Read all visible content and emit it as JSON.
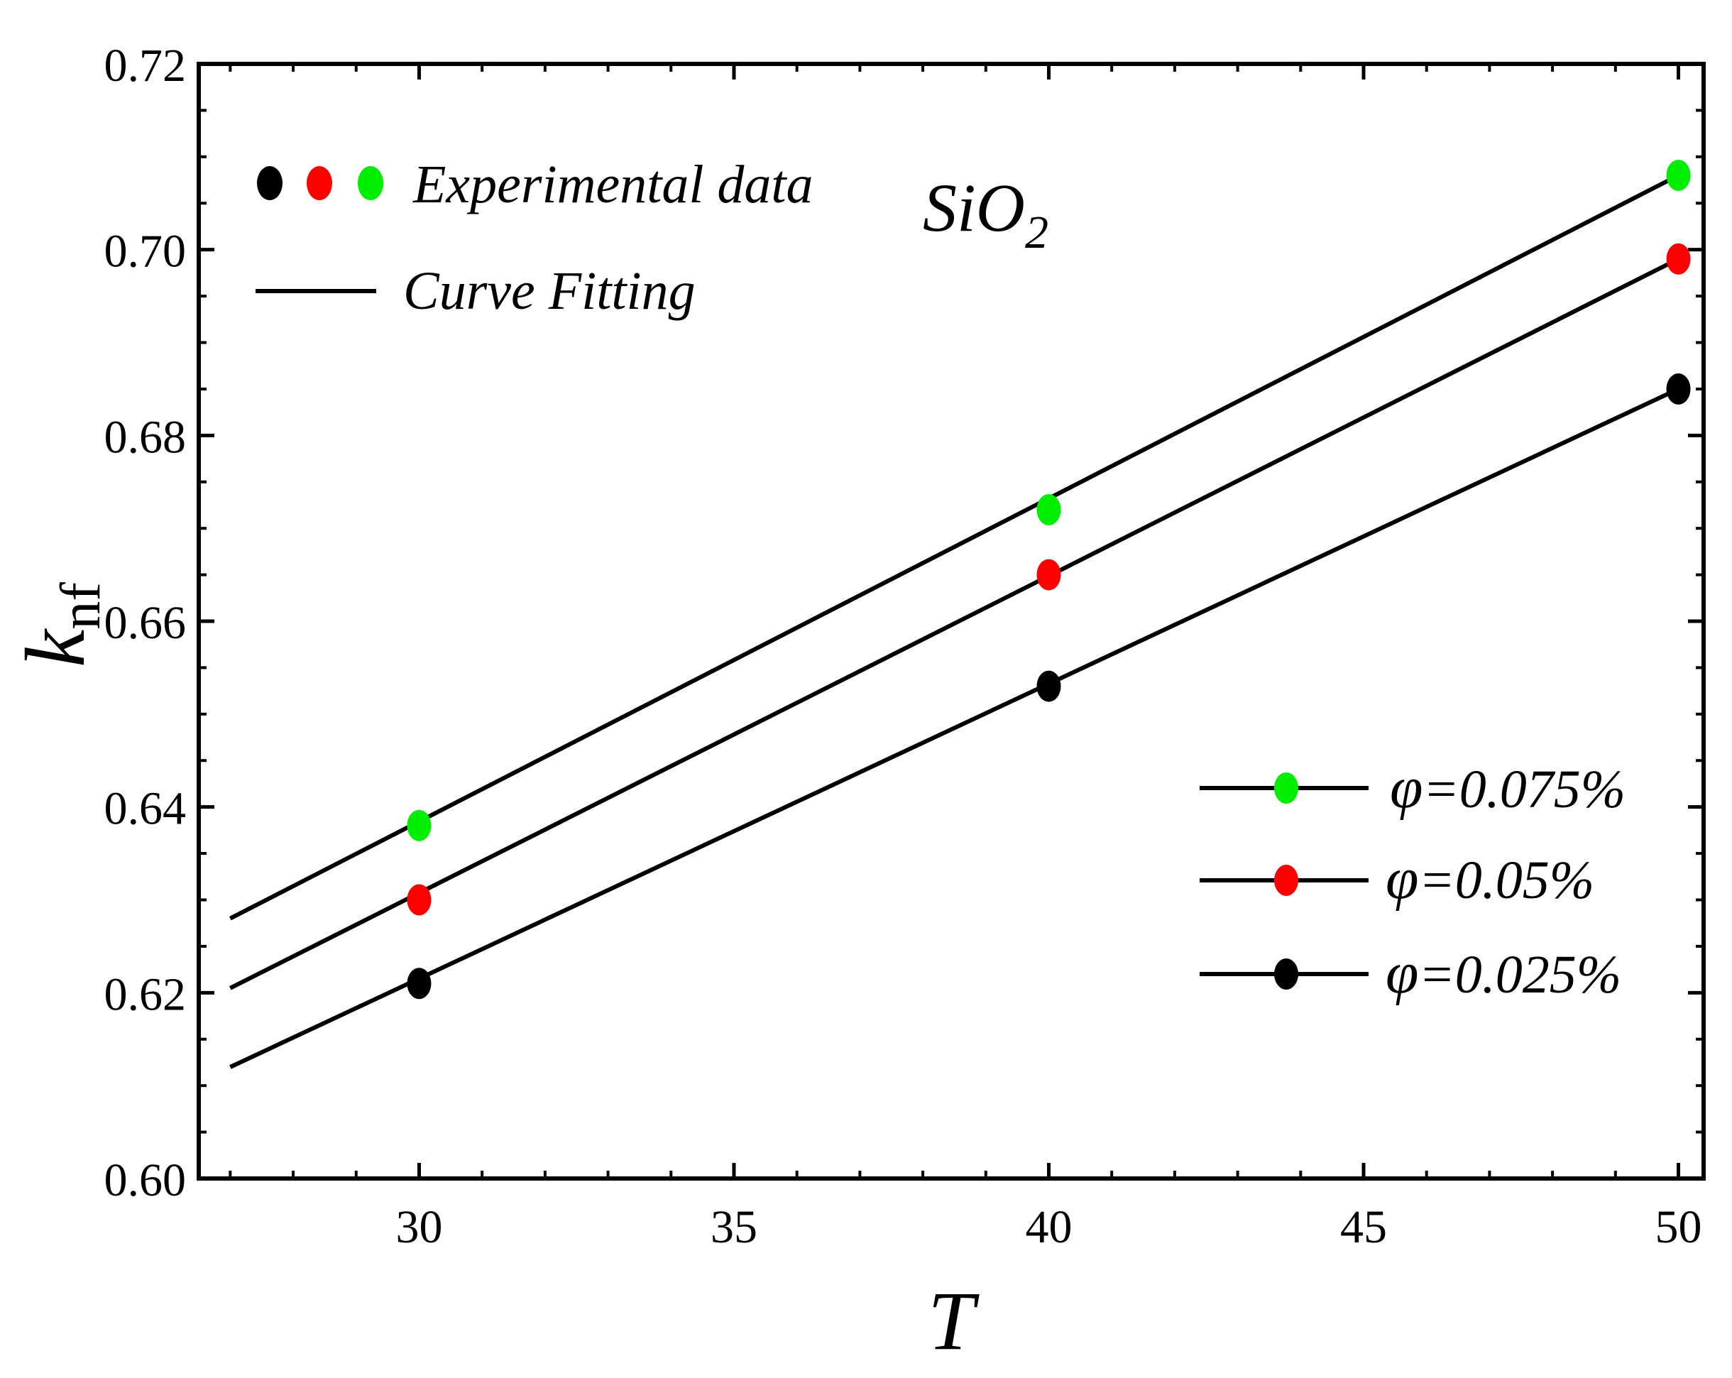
{
  "chart_data": {
    "type": "scatter",
    "title": "",
    "xlabel": "T",
    "ylabel": {
      "main": "k",
      "sub": "nf"
    },
    "xlim": [
      26.5,
      50.4
    ],
    "ylim": [
      0.6,
      0.72
    ],
    "xticks": [
      30,
      35,
      40,
      45,
      50
    ],
    "yticks": [
      0.6,
      0.62,
      0.64,
      0.66,
      0.68,
      0.7,
      0.72
    ],
    "xtick_labels": [
      "30",
      "35",
      "40",
      "45",
      "50"
    ],
    "ytick_labels": [
      "0.60",
      "0.62",
      "0.64",
      "0.66",
      "0.68",
      "0.70",
      "0.72"
    ],
    "grid": false,
    "annotation": {
      "base": "SiO",
      "sub": "2"
    },
    "legend_top": {
      "position": "top-left",
      "marker_colors": [
        "#000000",
        "#ff0000",
        "#00ee00"
      ],
      "experimental_label": "Experimental data",
      "fit_label": "Curve Fitting"
    },
    "series": [
      {
        "name": "φ=0.075%",
        "phi_symbol": "φ",
        "phi_value": "=0.075%",
        "color": "#00ee00",
        "points": [
          [
            30,
            0.638
          ],
          [
            40,
            0.672
          ],
          [
            50,
            0.708
          ]
        ],
        "fit": [
          [
            27,
            0.628
          ],
          [
            50,
            0.708
          ]
        ]
      },
      {
        "name": "φ=0.05%",
        "phi_symbol": "φ",
        "phi_value": "=0.05%",
        "color": "#ff0000",
        "points": [
          [
            30,
            0.63
          ],
          [
            40,
            0.665
          ],
          [
            50,
            0.699
          ]
        ],
        "fit": [
          [
            27,
            0.6205
          ],
          [
            50,
            0.699
          ]
        ]
      },
      {
        "name": "φ=0.025%",
        "phi_symbol": "φ",
        "phi_value": "=0.025%",
        "color": "#000000",
        "points": [
          [
            30,
            0.621
          ],
          [
            40,
            0.653
          ],
          [
            50,
            0.685
          ]
        ],
        "fit": [
          [
            27,
            0.612
          ],
          [
            50,
            0.685
          ]
        ]
      }
    ]
  }
}
